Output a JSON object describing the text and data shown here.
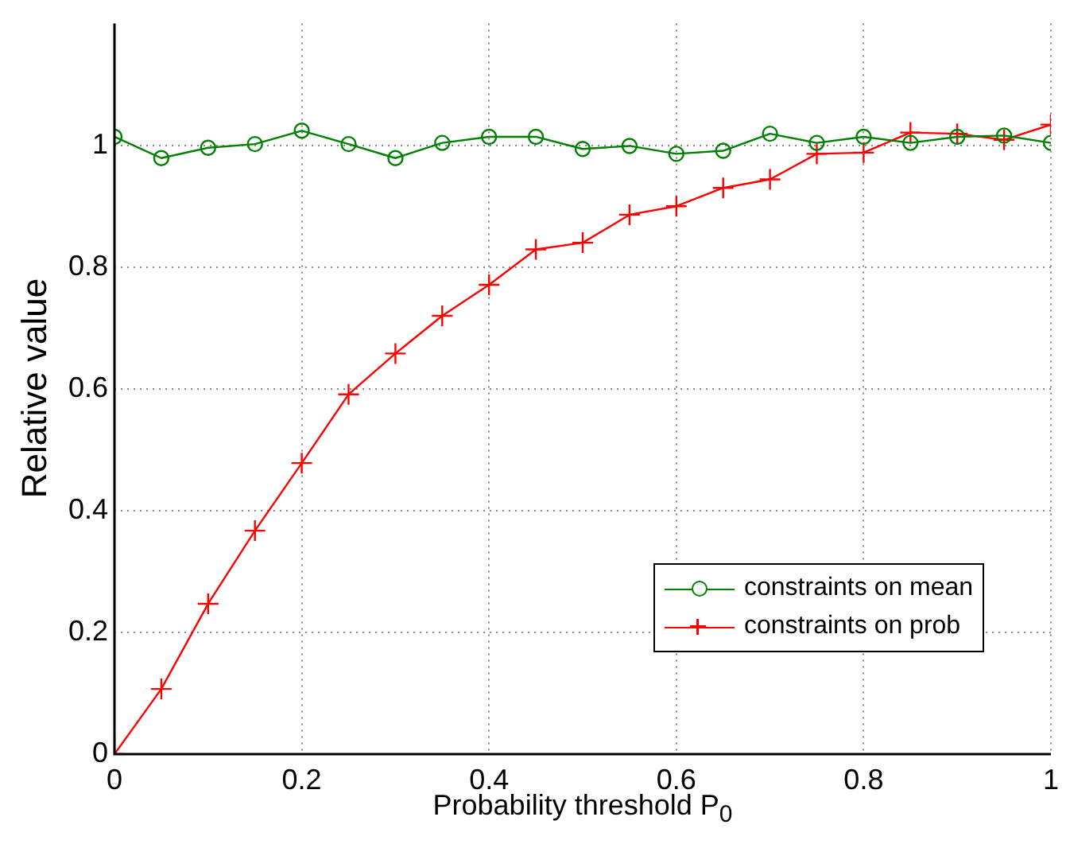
{
  "chart_data": {
    "type": "line",
    "xlabel": "Probability threshold P$_{0}$",
    "ylabel": "Relative value",
    "x": [
      0,
      0.05,
      0.1,
      0.15,
      0.2,
      0.25,
      0.3,
      0.35,
      0.4,
      0.45,
      0.5,
      0.55,
      0.6,
      0.65,
      0.7,
      0.75,
      0.8,
      0.85,
      0.9,
      0.95,
      1
    ],
    "series": [
      {
        "name": "constraints on mean",
        "color": "#008000",
        "marker": "circle",
        "values": [
          1.014,
          0.979,
          0.996,
          1.002,
          1.024,
          1.002,
          0.979,
          1.004,
          1.014,
          1.014,
          0.994,
          0.999,
          0.986,
          0.991,
          1.019,
          1.004,
          1.014,
          1.004,
          1.014,
          1.016,
          1.004
        ]
      },
      {
        "name": "constraints on prob",
        "color": "#ff0000",
        "marker": "cross",
        "values": [
          0,
          0.107,
          0.247,
          0.367,
          0.478,
          0.591,
          0.658,
          0.72,
          0.771,
          0.829,
          0.84,
          0.886,
          0.9,
          0.93,
          0.944,
          0.986,
          0.988,
          1.021,
          1.019,
          1.009,
          1.034
        ]
      }
    ],
    "xlim": [
      0,
      1
    ],
    "xticks": [
      0,
      0.2,
      0.4,
      0.6,
      0.8,
      1
    ],
    "ylim": [
      0,
      1.2
    ],
    "yticks": [
      0,
      0.2,
      0.4,
      0.6,
      0.8,
      1
    ],
    "grid": true,
    "legend": "bottom right",
    "line_style": "solid"
  }
}
